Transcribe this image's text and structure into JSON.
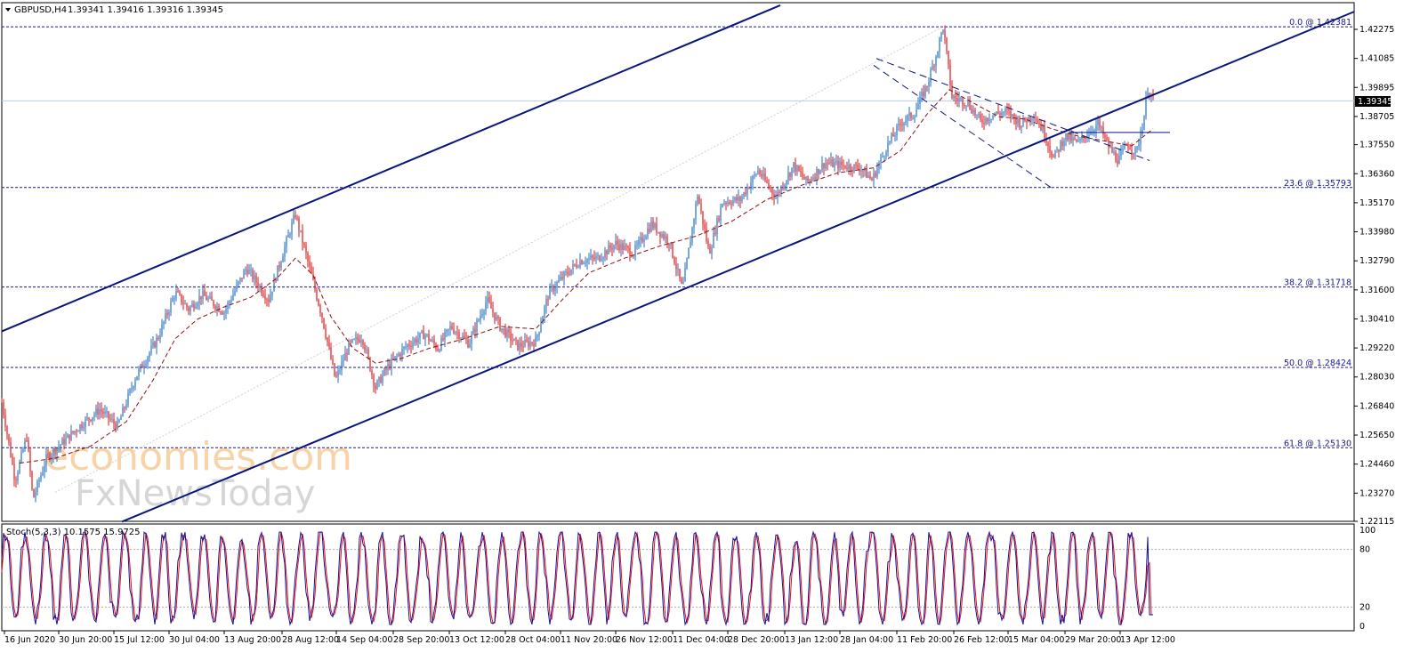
{
  "header": {
    "symbol_label": "GBPUSD,H4",
    "ohlc_label": "1.39341 1.39416 1.39316 1.39345"
  },
  "watermark": {
    "line1": "economies.com",
    "line2": "FxNewsToday"
  },
  "price_axis": {
    "ticks": [
      "1.42275",
      "1.41085",
      "1.39895",
      "1.38705",
      "1.37550",
      "1.36360",
      "1.35170",
      "1.33980",
      "1.32790",
      "1.31600",
      "1.30410",
      "1.29220",
      "1.28030",
      "1.26840",
      "1.25650",
      "1.24460",
      "1.23270",
      "1.22115"
    ],
    "current_price": "1.39345"
  },
  "fib_levels": [
    {
      "label": "0.0 @ 1.42381",
      "value": 1.42381
    },
    {
      "label": "23.6 @ 1.35793",
      "value": 1.35793
    },
    {
      "label": "38.2 @ 1.31718",
      "value": 1.31718
    },
    {
      "label": "50.0 @ 1.28424",
      "value": 1.28424
    },
    {
      "label": "61.8 @ 1.25130",
      "value": 1.2513
    }
  ],
  "time_axis": {
    "ticks": [
      "16 Jun 2020",
      "30 Jun 20:00",
      "15 Jul 12:00",
      "30 Jul 04:00",
      "13 Aug 20:00",
      "28 Aug 12:00",
      "14 Sep 04:00",
      "28 Sep 20:00",
      "13 Oct 12:00",
      "28 Oct 04:00",
      "11 Nov 20:00",
      "26 Nov 12:00",
      "11 Dec 04:00",
      "28 Dec 20:00",
      "13 Jan 12:00",
      "28 Jan 04:00",
      "11 Feb 20:00",
      "26 Feb 12:00",
      "15 Mar 04:00",
      "29 Mar 20:00",
      "13 Apr 12:00"
    ]
  },
  "stoch": {
    "label": "Stoch(5,3,3) 10.1575 15.9725",
    "ticks": [
      "100",
      "80",
      "20",
      "0"
    ]
  },
  "colors": {
    "bull": "#1f6fc4",
    "bear": "#e01515",
    "channel": "#0a157a",
    "ma": "#8b1010",
    "grid": "#1a1a8c",
    "stoch_main": "#1010a0",
    "stoch_signal": "#e01515"
  },
  "chart_data": {
    "type": "candlestick",
    "title": "GBPUSD,H4",
    "ylim": [
      1.22,
      1.43
    ],
    "anchors": [
      [
        0,
        1.27
      ],
      [
        15,
        1.238
      ],
      [
        28,
        1.256
      ],
      [
        35,
        1.23
      ],
      [
        50,
        1.247
      ],
      [
        70,
        1.254
      ],
      [
        90,
        1.261
      ],
      [
        110,
        1.267
      ],
      [
        130,
        1.26
      ],
      [
        150,
        1.28
      ],
      [
        175,
        1.296
      ],
      [
        195,
        1.315
      ],
      [
        210,
        1.308
      ],
      [
        225,
        1.314
      ],
      [
        250,
        1.307
      ],
      [
        275,
        1.325
      ],
      [
        300,
        1.312
      ],
      [
        315,
        1.33
      ],
      [
        330,
        1.347
      ],
      [
        345,
        1.326
      ],
      [
        360,
        1.305
      ],
      [
        375,
        1.279
      ],
      [
        390,
        1.293
      ],
      [
        405,
        1.297
      ],
      [
        420,
        1.276
      ],
      [
        435,
        1.285
      ],
      [
        455,
        1.293
      ],
      [
        475,
        1.298
      ],
      [
        490,
        1.292
      ],
      [
        505,
        1.301
      ],
      [
        525,
        1.294
      ],
      [
        545,
        1.312
      ],
      [
        560,
        1.301
      ],
      [
        580,
        1.293
      ],
      [
        600,
        1.295
      ],
      [
        615,
        1.315
      ],
      [
        630,
        1.321
      ],
      [
        650,
        1.328
      ],
      [
        670,
        1.329
      ],
      [
        690,
        1.335
      ],
      [
        710,
        1.331
      ],
      [
        730,
        1.343
      ],
      [
        750,
        1.336
      ],
      [
        765,
        1.316
      ],
      [
        782,
        1.355
      ],
      [
        795,
        1.331
      ],
      [
        810,
        1.352
      ],
      [
        830,
        1.353
      ],
      [
        850,
        1.365
      ],
      [
        870,
        1.354
      ],
      [
        890,
        1.367
      ],
      [
        905,
        1.36
      ],
      [
        925,
        1.368
      ],
      [
        945,
        1.367
      ],
      [
        965,
        1.366
      ],
      [
        978,
        1.361
      ],
      [
        995,
        1.375
      ],
      [
        1012,
        1.385
      ],
      [
        1025,
        1.388
      ],
      [
        1040,
        1.4
      ],
      [
        1050,
        1.412
      ],
      [
        1058,
        1.4238
      ],
      [
        1068,
        1.395
      ],
      [
        1085,
        1.393
      ],
      [
        1100,
        1.385
      ],
      [
        1115,
        1.388
      ],
      [
        1130,
        1.389
      ],
      [
        1145,
        1.384
      ],
      [
        1160,
        1.388
      ],
      [
        1172,
        1.38
      ],
      [
        1182,
        1.37
      ],
      [
        1195,
        1.379
      ],
      [
        1210,
        1.376
      ],
      [
        1220,
        1.38
      ],
      [
        1232,
        1.384
      ],
      [
        1245,
        1.374
      ],
      [
        1255,
        1.369
      ],
      [
        1265,
        1.376
      ],
      [
        1275,
        1.372
      ],
      [
        1283,
        1.385
      ],
      [
        1288,
        1.3985
      ],
      [
        1294,
        1.3935
      ]
    ],
    "moving_average": [
      [
        20,
        1.245
      ],
      [
        60,
        1.247
      ],
      [
        100,
        1.252
      ],
      [
        140,
        1.262
      ],
      [
        170,
        1.279
      ],
      [
        195,
        1.296
      ],
      [
        220,
        1.304
      ],
      [
        250,
        1.309
      ],
      [
        280,
        1.313
      ],
      [
        310,
        1.321
      ],
      [
        330,
        1.329
      ],
      [
        350,
        1.322
      ],
      [
        370,
        1.305
      ],
      [
        395,
        1.292
      ],
      [
        420,
        1.286
      ],
      [
        450,
        1.288
      ],
      [
        480,
        1.292
      ],
      [
        520,
        1.296
      ],
      [
        560,
        1.301
      ],
      [
        600,
        1.3
      ],
      [
        630,
        1.312
      ],
      [
        660,
        1.323
      ],
      [
        700,
        1.329
      ],
      [
        740,
        1.334
      ],
      [
        780,
        1.338
      ],
      [
        820,
        1.344
      ],
      [
        860,
        1.353
      ],
      [
        900,
        1.359
      ],
      [
        940,
        1.364
      ],
      [
        980,
        1.366
      ],
      [
        1010,
        1.373
      ],
      [
        1040,
        1.388
      ],
      [
        1065,
        1.398
      ],
      [
        1090,
        1.393
      ],
      [
        1120,
        1.387
      ],
      [
        1150,
        1.386
      ],
      [
        1180,
        1.382
      ],
      [
        1210,
        1.379
      ],
      [
        1240,
        1.377
      ],
      [
        1270,
        1.375
      ],
      [
        1294,
        1.382
      ]
    ],
    "channel_upper": [
      [
        0,
        1.299
      ],
      [
        875,
        1.4326
      ]
    ],
    "channel_lower": [
      [
        135,
        1.221
      ],
      [
        1520,
        1.43
      ]
    ],
    "channel_upper_dashed": [
      [
        983,
        1.4108
      ],
      [
        1290,
        1.369
      ]
    ],
    "channel_lower_dashed": [
      [
        980,
        1.408
      ],
      [
        1183,
        1.357
      ]
    ],
    "resistance_line": [
      [
        1200,
        1.3805
      ],
      [
        1313,
        1.3805
      ]
    ],
    "stochastic": {
      "ylim": [
        0,
        100
      ],
      "levels": [
        80,
        20
      ]
    }
  }
}
